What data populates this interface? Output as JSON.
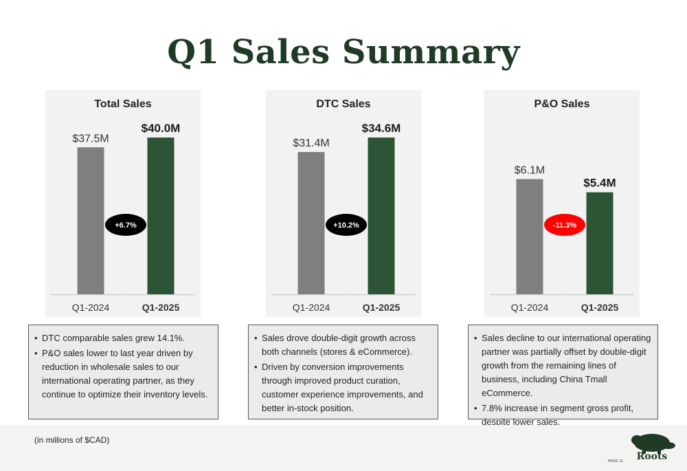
{
  "page": {
    "title": "Q1 Sales Summary"
  },
  "colors": {
    "prior": "#7f7f7f",
    "current": "#2d5535",
    "badge_positive": "#000000",
    "badge_negative": "#ff0000",
    "title": "#1f3a25"
  },
  "chart_data": [
    {
      "type": "bar",
      "title": "Total Sales",
      "categories": [
        "Q1-2024",
        "Q1-2025"
      ],
      "values": [
        37.5,
        40.0
      ],
      "labels": [
        "$37.5M",
        "$40.0M"
      ],
      "change": "+6.7%",
      "change_sign": "positive",
      "ylim": [
        0,
        40.0
      ],
      "grid": false
    },
    {
      "type": "bar",
      "title": "DTC Sales",
      "categories": [
        "Q1-2024",
        "Q1-2025"
      ],
      "values": [
        31.4,
        34.6
      ],
      "labels": [
        "$31.4M",
        "$34.6M"
      ],
      "change": "+10.2%",
      "change_sign": "positive",
      "ylim": [
        0,
        34.6
      ],
      "grid": false
    },
    {
      "type": "bar",
      "title": "P&O Sales",
      "categories": [
        "Q1-2024",
        "Q1-2025"
      ],
      "values": [
        6.1,
        5.4
      ],
      "labels": [
        "$6.1M",
        "$5.4M"
      ],
      "change": "-11.3%",
      "change_sign": "negative",
      "ylim": [
        0,
        8.3
      ],
      "grid": false
    }
  ],
  "notes": [
    [
      "DTC comparable sales grew 14.1%.",
      "P&O sales lower to last year driven by reduction in wholesale sales to our international operating partner, as they continue to optimize their inventory levels."
    ],
    [
      "Sales drove double-digit growth across both channels (stores & eCommerce).",
      "Driven by conversion improvements through improved product curation, customer experience improvements, and better in-stock position."
    ],
    [
      "Sales decline to our international operating partner was partially offset by double-digit growth from the remaining lines of business, including China Tmall eCommerce.",
      "7.8% increase in segment gross profit, despite lower sales."
    ]
  ],
  "footer": {
    "note": "(in millions of $CAD)",
    "page": "PAGE 11",
    "logo_text": "Roots",
    "logo_icon": "beaver-icon"
  }
}
